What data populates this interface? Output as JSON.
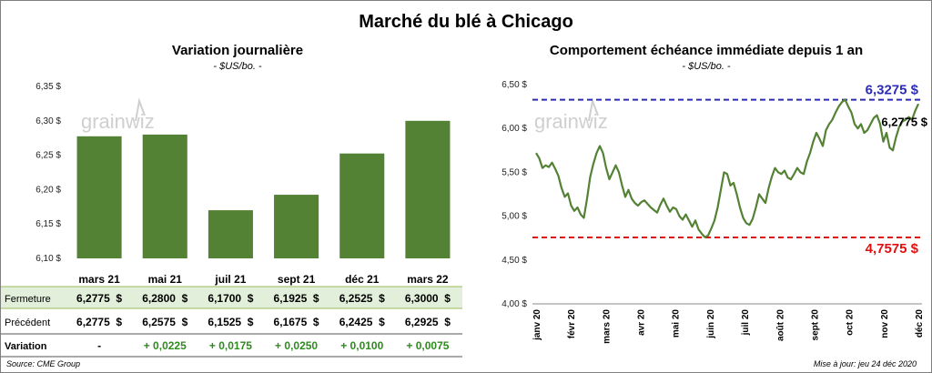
{
  "title": "Marché du blé à Chicago",
  "footer": {
    "source": "Source: CME Group",
    "updated": "Mise à jour: jeu 24 déc 2020"
  },
  "watermark": "grainwiz",
  "colors": {
    "bar": "#548235",
    "line": "#548235",
    "table_highlight": "#e2efda",
    "high": "#2b2bb5",
    "low": "#e01010"
  },
  "chart_data": [
    {
      "type": "bar",
      "title": "Variation journalière",
      "subtitle": "- $US/bo. -",
      "categories": [
        "mars 21",
        "mai 21",
        "juil 21",
        "sept 21",
        "déc 21",
        "mars 22"
      ],
      "values": [
        6.2775,
        6.28,
        6.17,
        6.1925,
        6.2525,
        6.3
      ],
      "ylim": [
        6.1,
        6.35
      ],
      "yticks": [
        "6,10 $",
        "6,15 $",
        "6,20 $",
        "6,25 $",
        "6,30 $",
        "6,35 $"
      ],
      "table": {
        "rows": [
          {
            "label": "Fermeture",
            "cells": [
              "6,2775  $",
              "6,2800  $",
              "6,1700  $",
              "6,1925  $",
              "6,2525  $",
              "6,3000  $"
            ]
          },
          {
            "label": "Précédent",
            "cells": [
              "6,2775  $",
              "6,2575  $",
              "6,1525  $",
              "6,1675  $",
              "6,2425  $",
              "6,2925  $"
            ]
          },
          {
            "label": "Variation",
            "cells": [
              "-",
              "+ 0,0225",
              "+ 0,0175",
              "+ 0,0250",
              "+ 0,0100",
              "+ 0,0075"
            ]
          }
        ]
      }
    },
    {
      "type": "line",
      "title": "Comportement  échéance immédiate depuis 1 an",
      "subtitle": "- $US/bo. -",
      "ylim": [
        4.0,
        6.5
      ],
      "yticks": [
        "4,00 $",
        "4,50 $",
        "5,00 $",
        "5,50 $",
        "6,00 $",
        "6,50 $"
      ],
      "xticks": [
        "janv 20",
        "févr 20",
        "mars 20",
        "avr 20",
        "mai 20",
        "juin 20",
        "juil 20",
        "août 20",
        "sept 20",
        "oct 20",
        "nov 20",
        "déc 20"
      ],
      "high": {
        "value": 6.3275,
        "label": "6,3275 $"
      },
      "low": {
        "value": 4.7575,
        "label": "4,7575 $"
      },
      "last": {
        "value": 6.2775,
        "label": "6,2775 $"
      },
      "series": [
        {
          "values": [
            5.72,
            5.66,
            5.55,
            5.58,
            5.56,
            5.61,
            5.54,
            5.46,
            5.32,
            5.22,
            5.26,
            5.12,
            5.06,
            5.1,
            5.02,
            4.98,
            5.2,
            5.45,
            5.6,
            5.72,
            5.8,
            5.72,
            5.55,
            5.42,
            5.5,
            5.58,
            5.5,
            5.35,
            5.22,
            5.3,
            5.2,
            5.15,
            5.12,
            5.16,
            5.18,
            5.14,
            5.1,
            5.07,
            5.04,
            5.13,
            5.2,
            5.12,
            5.05,
            5.1,
            5.08,
            5.0,
            4.96,
            5.02,
            4.95,
            4.88,
            4.95,
            4.85,
            4.8,
            4.76,
            4.78,
            4.86,
            4.95,
            5.1,
            5.3,
            5.5,
            5.48,
            5.35,
            5.38,
            5.25,
            5.1,
            4.98,
            4.92,
            4.9,
            4.97,
            5.1,
            5.25,
            5.2,
            5.15,
            5.32,
            5.45,
            5.55,
            5.5,
            5.48,
            5.52,
            5.44,
            5.42,
            5.48,
            5.55,
            5.5,
            5.48,
            5.62,
            5.72,
            5.85,
            5.95,
            5.88,
            5.8,
            5.98,
            6.05,
            6.1,
            6.18,
            6.25,
            6.3,
            6.33,
            6.25,
            6.18,
            6.05,
            6.0,
            6.05,
            5.95,
            5.98,
            6.05,
            6.12,
            6.15,
            6.05,
            5.85,
            5.95,
            5.78,
            5.75,
            5.9,
            6.02,
            6.08,
            6.1,
            6.13,
            6.1,
            6.2,
            6.28
          ]
        }
      ]
    }
  ]
}
